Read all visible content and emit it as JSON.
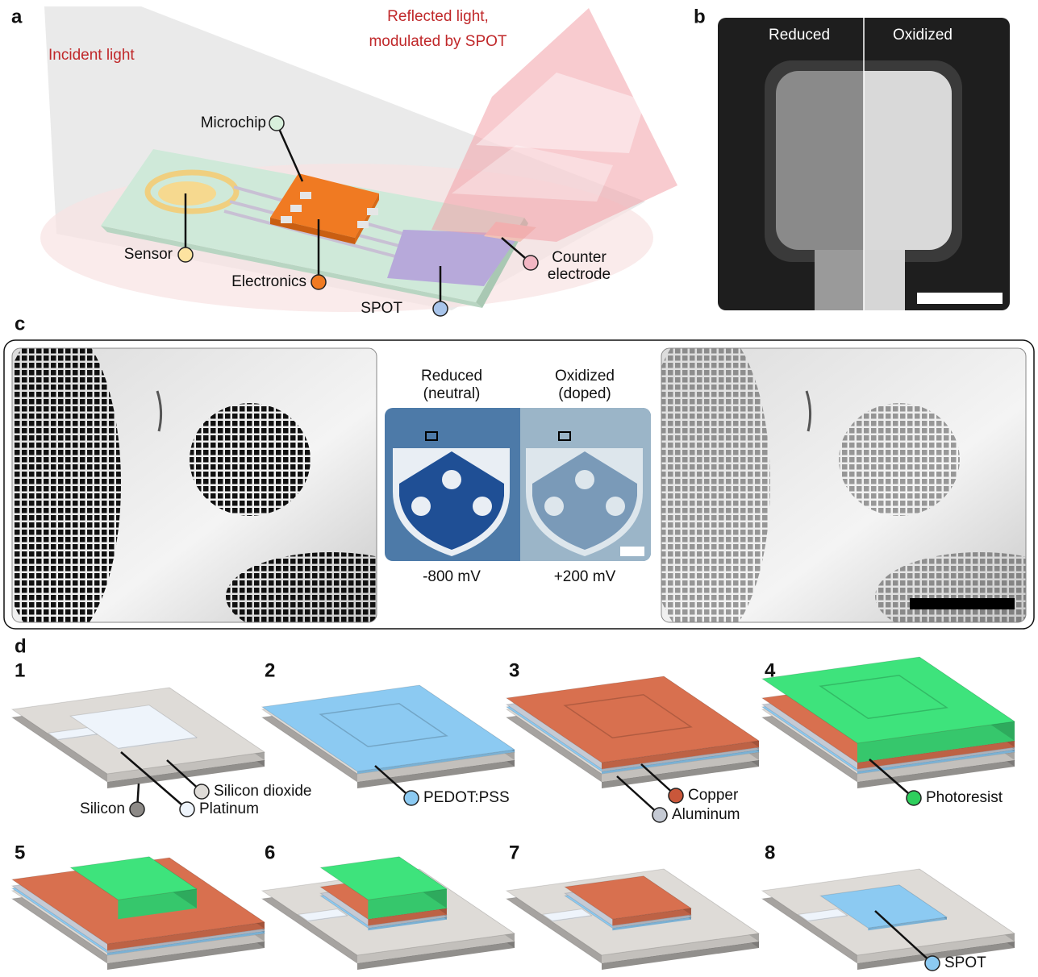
{
  "panel_a": {
    "label": "a",
    "incident_light": "Incident light",
    "reflected_light": [
      "Reflected light,",
      "modulated by SPOT"
    ],
    "callouts": {
      "microchip": "Microchip",
      "sensor": "Sensor",
      "electronics": "Electronics",
      "spot": "SPOT",
      "counter_electrode": [
        "Counter",
        "electrode"
      ]
    }
  },
  "panel_b": {
    "label": "b",
    "left": "Reduced",
    "right": "Oxidized"
  },
  "panel_c": {
    "label": "c",
    "left_state": [
      "Reduced",
      "(neutral)"
    ],
    "right_state": [
      "Oxidized",
      "(doped)"
    ],
    "left_voltage": "-800 mV",
    "right_voltage": "+200 mV"
  },
  "panel_d": {
    "label": "d",
    "steps": [
      {
        "number": "1",
        "callouts": [
          "Silicon dioxide",
          "Silicon",
          "Platinum"
        ]
      },
      {
        "number": "2",
        "callouts": [
          "PEDOT:PSS"
        ]
      },
      {
        "number": "3",
        "callouts": [
          "Copper",
          "Aluminum"
        ]
      },
      {
        "number": "4",
        "callouts": [
          "Photoresist"
        ]
      },
      {
        "number": "5"
      },
      {
        "number": "6"
      },
      {
        "number": "7"
      },
      {
        "number": "8",
        "callouts": [
          "SPOT"
        ]
      }
    ]
  }
}
